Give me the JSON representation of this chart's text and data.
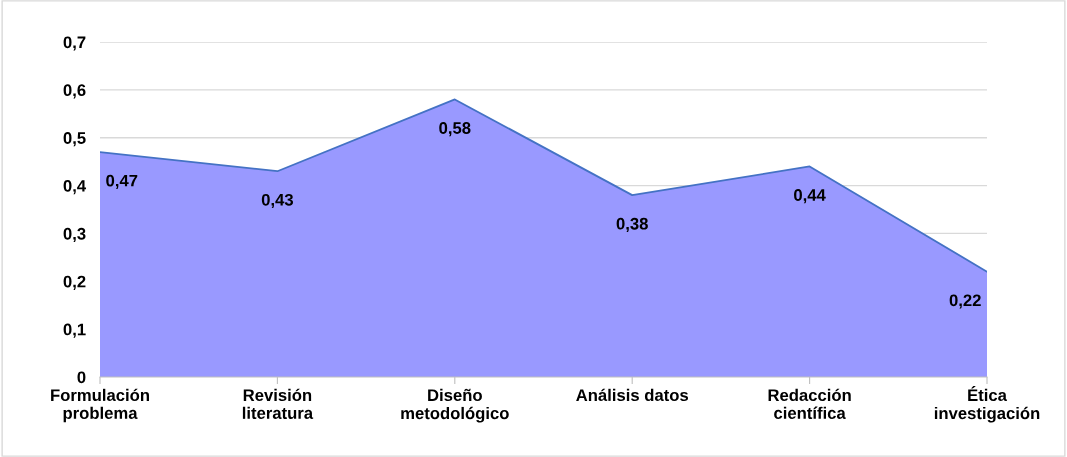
{
  "chart_data": {
    "type": "area",
    "categories": [
      "Formulación\nproblema",
      "Revisión\nliteratura",
      "Diseño\nmetodológico",
      "Análisis datos",
      "Redacción\ncientífica",
      "Ética\ninvestigación"
    ],
    "series": [
      {
        "color": "#9999ff",
        "values": [
          0.47,
          0.43,
          0.58,
          0.38,
          0.44,
          0.22
        ],
        "value_labels": [
          "0,47",
          "0,43",
          "0,58",
          "0,38",
          "0,44",
          "0,22"
        ]
      }
    ],
    "ylim": [
      0,
      0.7
    ],
    "yticks": [
      {
        "value": 0,
        "label": "0"
      },
      {
        "value": 0.1,
        "label": "0,1"
      },
      {
        "value": 0.2,
        "label": "0,2"
      },
      {
        "value": 0.3,
        "label": "0,3"
      },
      {
        "value": 0.4,
        "label": "0,4"
      },
      {
        "value": 0.5,
        "label": "0,5"
      },
      {
        "value": 0.6,
        "label": "0,6"
      },
      {
        "value": 0.7,
        "label": "0,7"
      }
    ],
    "grid": "y",
    "legend": false
  }
}
